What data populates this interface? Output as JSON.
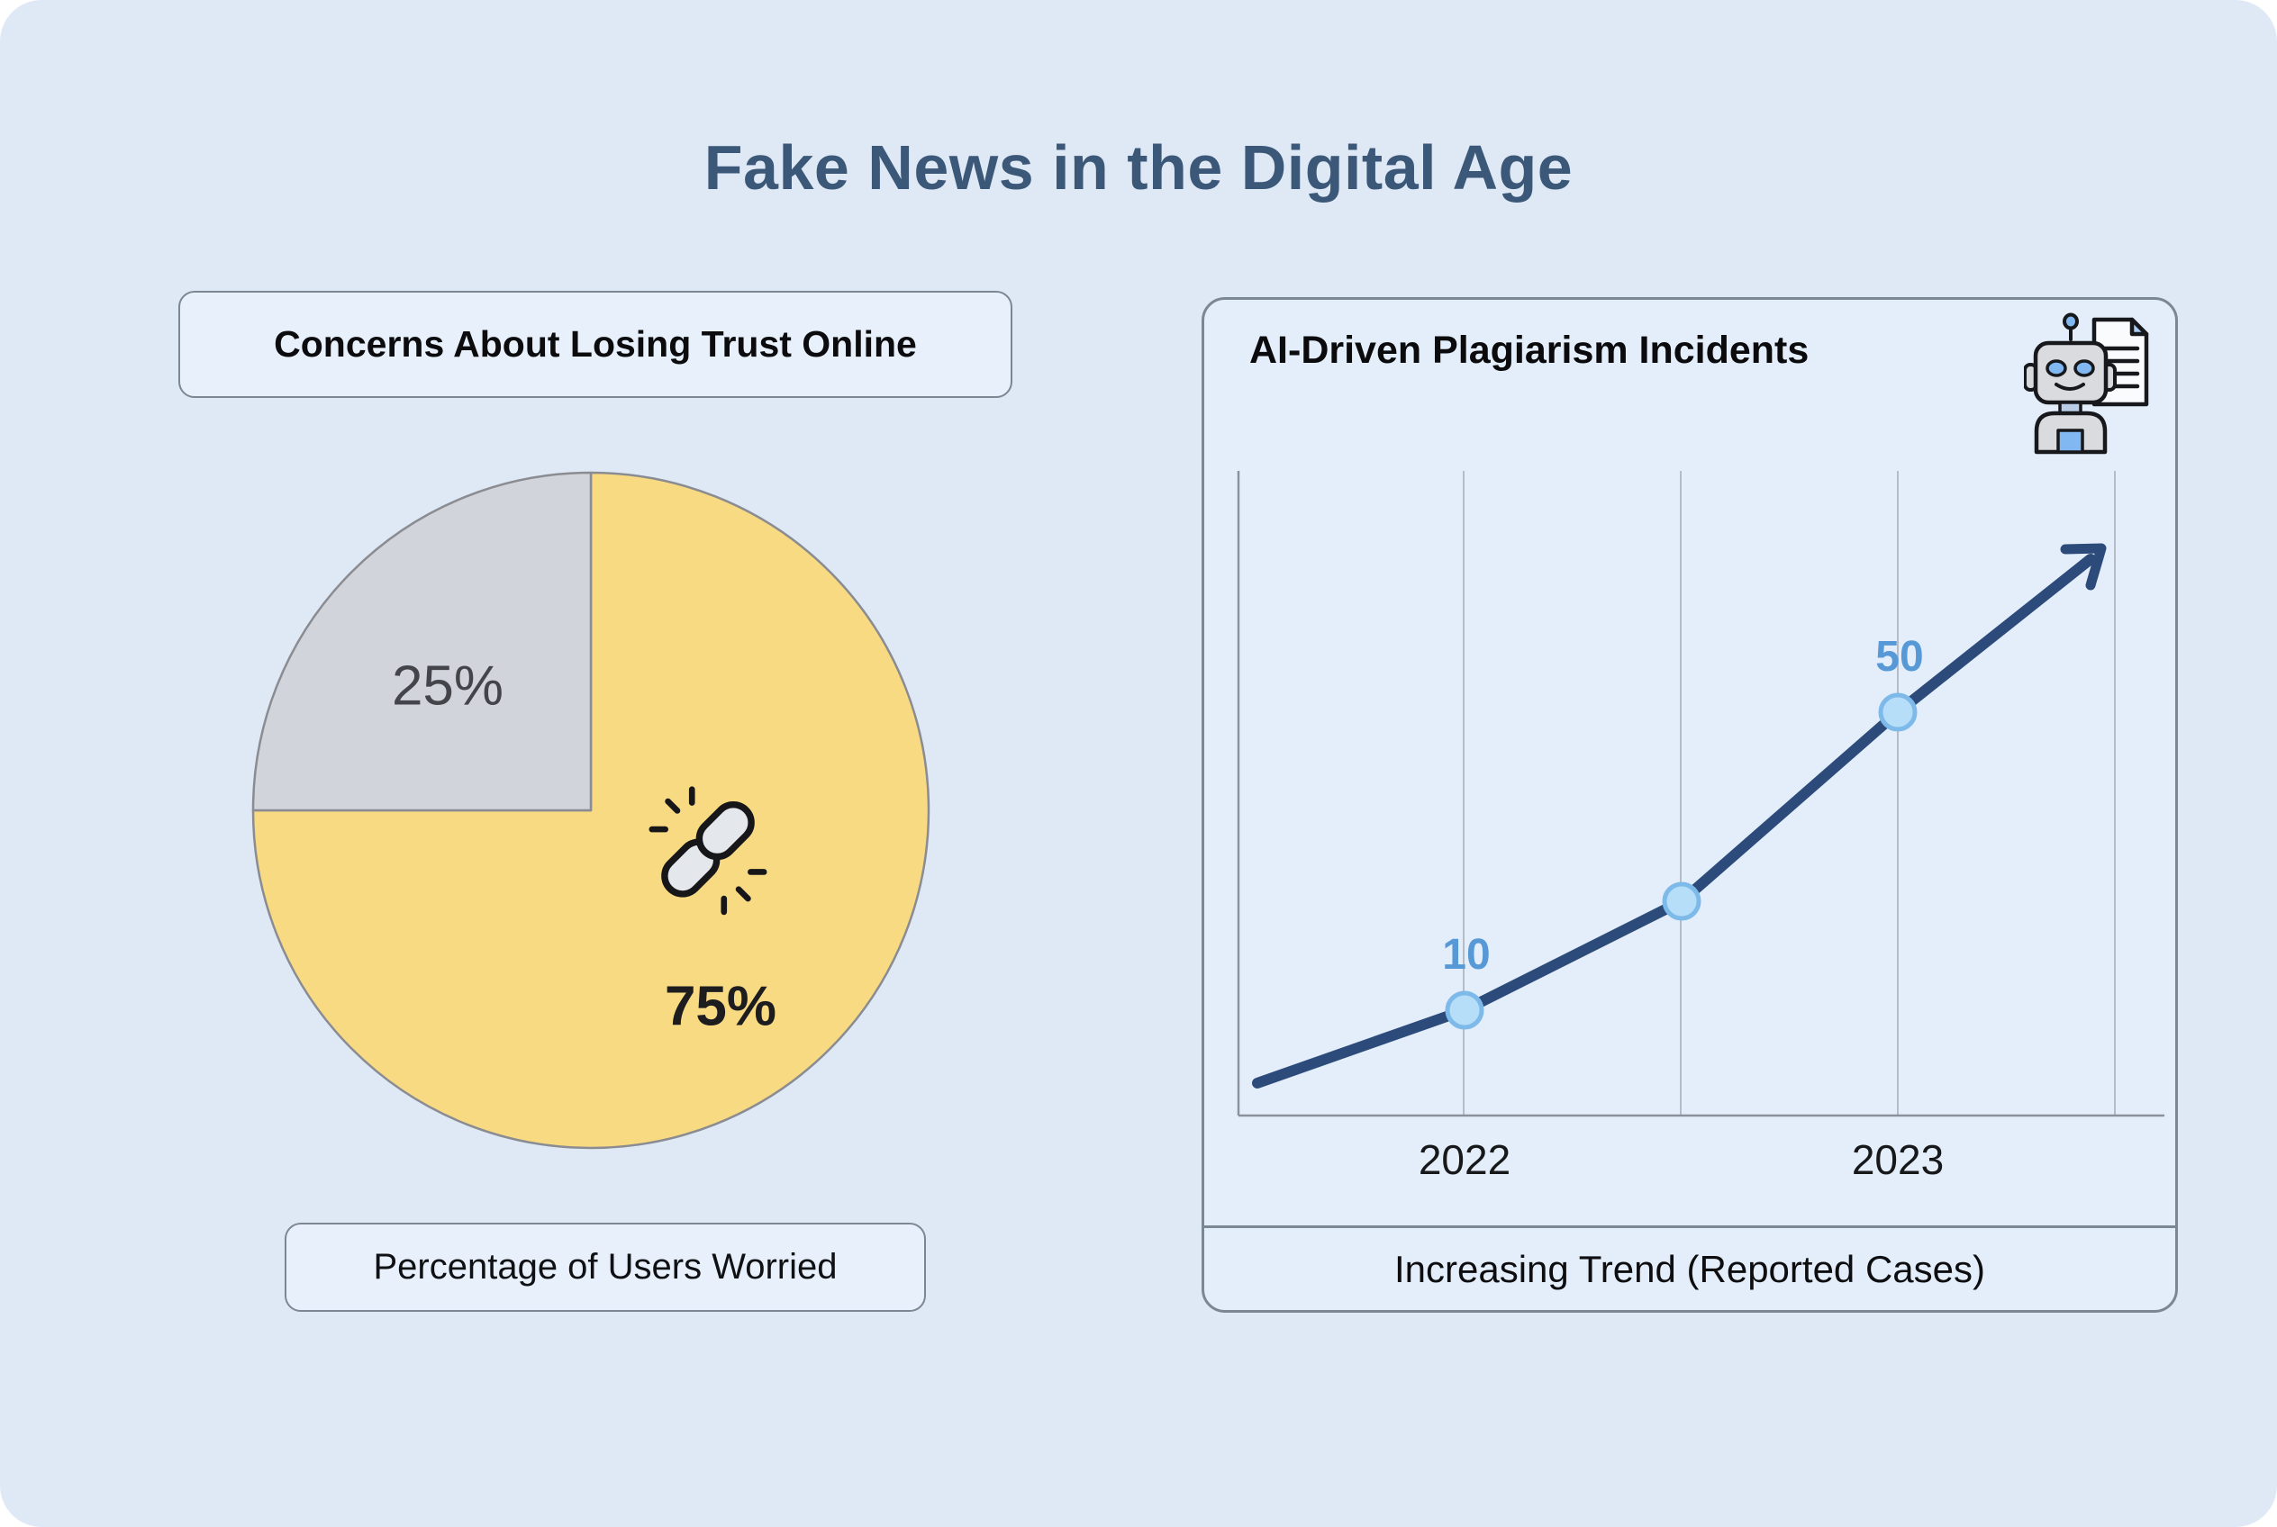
{
  "page": {
    "title": "Fake News in the Digital Age"
  },
  "pie_section": {
    "header": "Concerns About Losing Trust Online",
    "caption": "Percentage of Users Worried",
    "icon": "broken-chain-link-icon"
  },
  "line_section": {
    "header": "AI-Driven Plagiarism Incidents",
    "caption": "Increasing Trend (Reported Cases)",
    "icon": "robot-with-document-icon"
  },
  "chart_data": [
    {
      "type": "pie",
      "title": "Concerns About Losing Trust Online",
      "subtitle": "Percentage of Users Worried",
      "start_at": "top-clockwise",
      "slices": [
        {
          "label": "75%",
          "value": 75,
          "color": "#F8DA82"
        },
        {
          "label": "25%",
          "value": 25,
          "color": "#D2D4DB"
        }
      ],
      "stroke_color": "#8A8C91"
    },
    {
      "type": "line",
      "title": "AI-Driven Plagiarism Incidents",
      "caption": "Increasing Trend (Reported Cases)",
      "x_tick_labels": [
        "2022",
        "2023"
      ],
      "points": [
        {
          "x": "pre-2022",
          "value": 3,
          "label": "",
          "estimated": true
        },
        {
          "x": "2022",
          "value": 10,
          "label": "10"
        },
        {
          "x": "mid-2022-2023",
          "value": 21,
          "label": "",
          "estimated": true
        },
        {
          "x": "2023",
          "value": 50,
          "label": "50"
        },
        {
          "x": "post-2023-arrow",
          "value": 58,
          "label": "",
          "estimated": true
        }
      ],
      "trend_arrow": true,
      "gridlines": "vertical-only",
      "ylim": [
        0,
        65
      ],
      "colors": {
        "line": "#2C4B7B",
        "marker_fill": "#B7DEF8",
        "marker_stroke": "#7EBAE9",
        "value_label": "#5799D6",
        "axis": "#8A919B",
        "grid": "#B6BCC5",
        "tick_label": "#17181A"
      }
    }
  ],
  "colors": {
    "canvas_bg": "#DFE9F6",
    "panel_border": "#7C8794",
    "box_bg": "#E8F1FB",
    "title": "#3C5878"
  }
}
